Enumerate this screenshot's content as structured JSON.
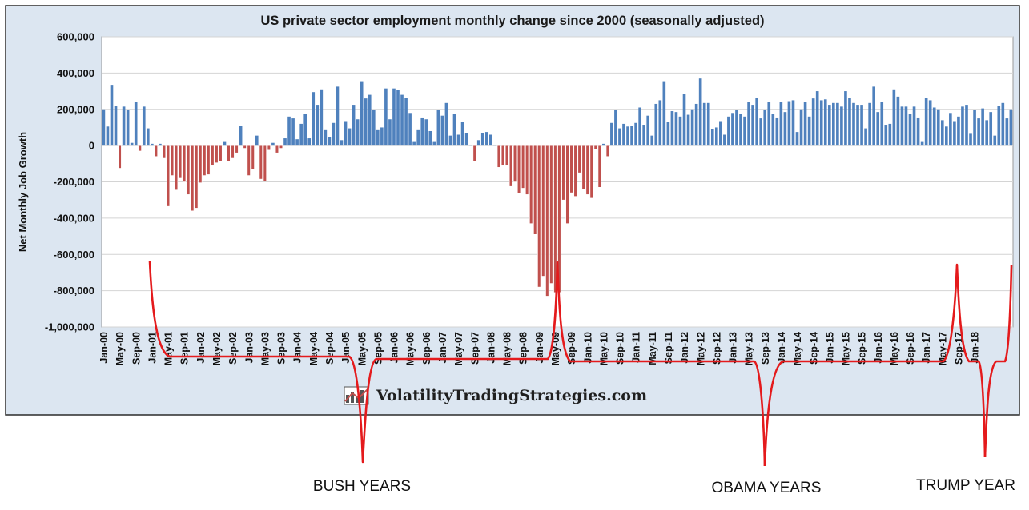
{
  "chart_data": {
    "type": "bar",
    "title": "US private sector employment monthly change since 2000   (seasonally adjusted)",
    "ylabel": "Net Monthly Job Growth",
    "xlabel": "",
    "ylim": [
      -1000000,
      600000
    ],
    "y_ticks": [
      "600,000",
      "400,000",
      "200,000",
      "0",
      "-200,000",
      "-400,000",
      "-600,000",
      "-800,000",
      "-1,000,000"
    ],
    "y_tick_values": [
      600000,
      400000,
      200000,
      0,
      -200000,
      -400000,
      -600000,
      -800000,
      -1000000
    ],
    "x_ticks": [
      "Jan-00",
      "May-00",
      "Sep-00",
      "Jan-01",
      "May-01",
      "Sep-01",
      "Jan-02",
      "May-02",
      "Sep-02",
      "Jan-03",
      "May-03",
      "Sep-03",
      "Jan-04",
      "May-04",
      "Sep-04",
      "Jan-05",
      "May-05",
      "Sep-05",
      "Jan-06",
      "May-06",
      "Sep-06",
      "Jan-07",
      "May-07",
      "Sep-07",
      "Jan-08",
      "May-08",
      "Sep-08",
      "Jan-09",
      "May-09",
      "Sep-09",
      "Jan-10",
      "May-10",
      "Sep-10",
      "Jan-11",
      "May-11",
      "Sep-11",
      "Jan-12",
      "May-12",
      "Sep-12",
      "Jan-13",
      "May-13",
      "Sep-13",
      "Jan-14",
      "May-14",
      "Sep-14",
      "Jan-15",
      "May-15",
      "Sep-15",
      "Jan-16",
      "May-16",
      "Sep-16",
      "Jan-17",
      "May-17",
      "Sep-17",
      "Jan-18"
    ],
    "x_start": "Jan-00",
    "values": [
      200000,
      105000,
      335000,
      220000,
      -125000,
      215000,
      195000,
      15000,
      240000,
      -30000,
      215000,
      95000,
      10000,
      -60000,
      10000,
      -70000,
      -335000,
      -165000,
      -245000,
      -180000,
      -200000,
      -270000,
      -360000,
      -345000,
      -205000,
      -165000,
      -160000,
      -110000,
      -95000,
      -85000,
      20000,
      -85000,
      -70000,
      -40000,
      110000,
      -15000,
      -165000,
      -130000,
      55000,
      -185000,
      -195000,
      -25000,
      15000,
      -40000,
      -15000,
      40000,
      160000,
      150000,
      35000,
      120000,
      175000,
      40000,
      295000,
      225000,
      310000,
      85000,
      45000,
      125000,
      325000,
      30000,
      135000,
      95000,
      225000,
      145000,
      355000,
      260000,
      280000,
      195000,
      85000,
      100000,
      315000,
      145000,
      315000,
      305000,
      280000,
      265000,
      180000,
      20000,
      85000,
      155000,
      145000,
      80000,
      20000,
      195000,
      165000,
      235000,
      55000,
      175000,
      60000,
      130000,
      70000,
      5000,
      -85000,
      30000,
      70000,
      75000,
      60000,
      5000,
      -120000,
      -110000,
      -110000,
      -225000,
      -200000,
      -265000,
      -235000,
      -270000,
      -430000,
      -490000,
      -780000,
      -720000,
      -830000,
      -760000,
      -810000,
      -810000,
      -300000,
      -430000,
      -260000,
      -280000,
      -150000,
      -240000,
      -270000,
      -290000,
      -20000,
      -230000,
      10000,
      -60000,
      125000,
      195000,
      95000,
      120000,
      105000,
      110000,
      125000,
      210000,
      115000,
      165000,
      55000,
      230000,
      250000,
      355000,
      130000,
      190000,
      185000,
      160000,
      285000,
      170000,
      200000,
      230000,
      370000,
      235000,
      235000,
      90000,
      100000,
      135000,
      60000,
      160000,
      180000,
      195000,
      175000,
      160000,
      240000,
      225000,
      265000,
      150000,
      195000,
      240000,
      175000,
      155000,
      240000,
      185000,
      245000,
      250000,
      75000,
      200000,
      240000,
      160000,
      260000,
      300000,
      250000,
      255000,
      225000,
      235000,
      235000,
      215000,
      300000,
      265000,
      235000,
      225000,
      225000,
      95000,
      235000,
      325000,
      185000,
      240000,
      115000,
      120000,
      310000,
      270000,
      215000,
      215000,
      175000,
      215000,
      155000,
      20000,
      265000,
      250000,
      210000,
      200000,
      140000,
      105000,
      180000,
      135000,
      160000,
      215000,
      225000,
      65000,
      195000,
      150000,
      205000,
      140000,
      185000,
      55000,
      220000,
      235000,
      150000,
      200000
    ]
  },
  "watermark": {
    "text": "VolatilityTradingStrategies.com"
  },
  "annotations": [
    {
      "label": "BUSH YEARS"
    },
    {
      "label": "OBAMA YEARS"
    },
    {
      "label": "TRUMP YEAR"
    }
  ],
  "colors": {
    "positive": "#4f81bd",
    "negative": "#c0504d",
    "bracket": "#e41a1c",
    "frame": "#dce6f1"
  }
}
